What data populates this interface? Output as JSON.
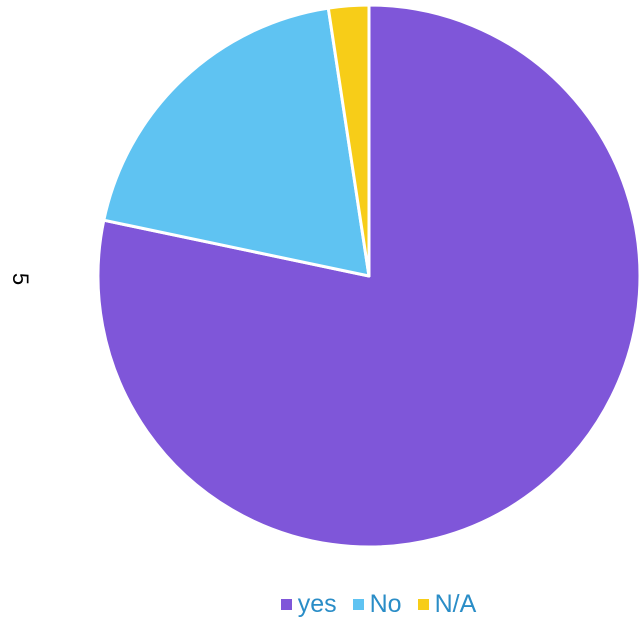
{
  "side_label": "5",
  "chart_data": {
    "type": "pie",
    "title": "",
    "start_angle_deg": 0,
    "direction": "clockwise",
    "slice_border_color": "#ffffff",
    "categories": [
      "yes",
      "No",
      "N/A"
    ],
    "values": [
      78.3,
      19.3,
      2.4
    ],
    "colors": [
      "#7f56d9",
      "#5fc3f2",
      "#f7cd18"
    ],
    "legend_position": "bottom",
    "legend_text_color": "#2a8dc7"
  }
}
